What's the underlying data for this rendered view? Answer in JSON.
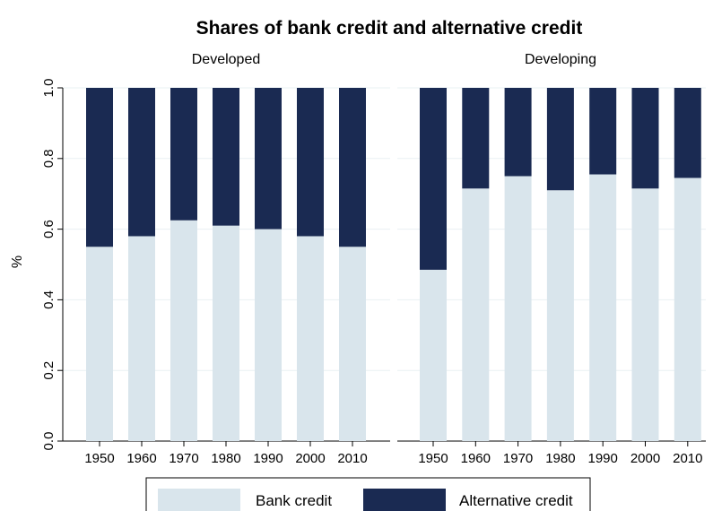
{
  "chart_data": {
    "type": "bar",
    "stacked": true,
    "title": "Shares of bank credit and alternative credit",
    "ylabel": "%",
    "ylim": [
      0,
      1
    ],
    "yticks": [
      "0.0",
      "0.2",
      "0.4",
      "0.6",
      "0.8",
      "1.0"
    ],
    "grid": true,
    "legend_position": "bottom",
    "colors": {
      "bank": "#d9e5ec",
      "alternative": "#1a2a52"
    },
    "series_names": [
      "Bank credit",
      "Alternative credit"
    ],
    "panels": [
      {
        "title": "Developed",
        "categories": [
          "1950",
          "1960",
          "1970",
          "1980",
          "1990",
          "2000",
          "2010"
        ],
        "series": [
          {
            "name": "Bank credit",
            "values": [
              0.55,
              0.58,
              0.625,
              0.61,
              0.6,
              0.58,
              0.55
            ]
          },
          {
            "name": "Alternative credit",
            "values": [
              0.45,
              0.42,
              0.375,
              0.39,
              0.4,
              0.42,
              0.45
            ]
          }
        ]
      },
      {
        "title": "Developing",
        "categories": [
          "1950",
          "1960",
          "1970",
          "1980",
          "1990",
          "2000",
          "2010"
        ],
        "series": [
          {
            "name": "Bank credit",
            "values": [
              0.485,
              0.715,
              0.75,
              0.71,
              0.755,
              0.715,
              0.745
            ]
          },
          {
            "name": "Alternative credit",
            "values": [
              0.515,
              0.285,
              0.25,
              0.29,
              0.245,
              0.285,
              0.255
            ]
          }
        ]
      }
    ]
  }
}
